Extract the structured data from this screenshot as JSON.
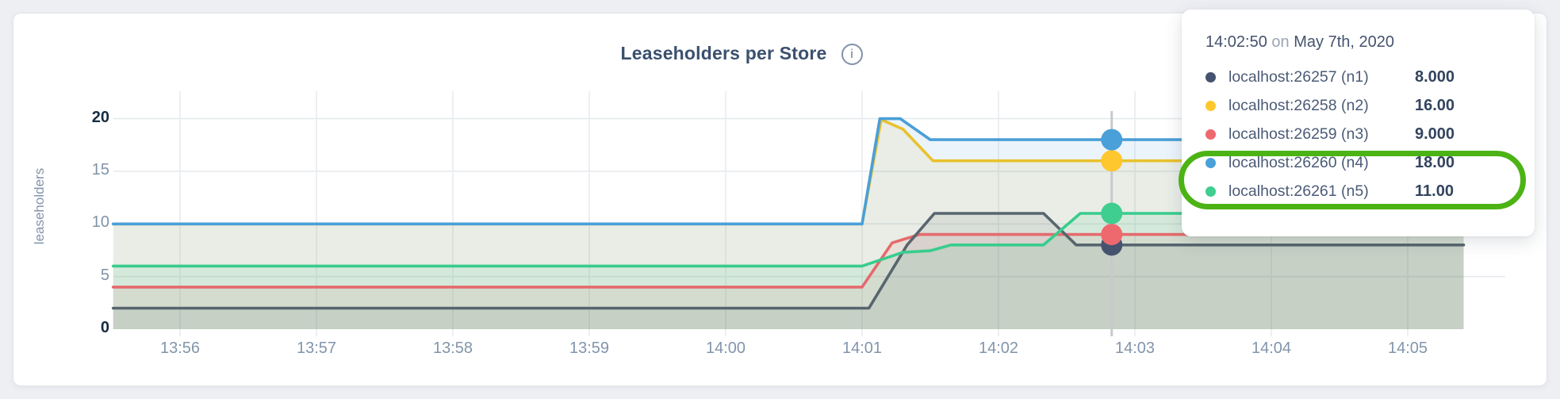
{
  "chart": {
    "title": "Leaseholders per Store",
    "info_glyph": "i",
    "y_axis_label": "leaseholders"
  },
  "tooltip": {
    "time": "14:02:50",
    "on_word": "on",
    "date": "May 7th, 2020",
    "rows": [
      {
        "label": "localhost:26257 (n1)",
        "value": "8.000",
        "color": "#45536e"
      },
      {
        "label": "localhost:26258 (n2)",
        "value": "16.00",
        "color": "#fec72e"
      },
      {
        "label": "localhost:26259 (n3)",
        "value": "9.000",
        "color": "#ed696e"
      },
      {
        "label": "localhost:26260 (n4)",
        "value": "18.00",
        "color": "#4aa0d9"
      },
      {
        "label": "localhost:26261 (n5)",
        "value": "11.00",
        "color": "#3fce8f"
      }
    ],
    "highlighted_rows": [
      3,
      4
    ],
    "highlight_color": "#4cb315"
  },
  "chart_data": {
    "type": "area",
    "title": "Leaseholders per Store",
    "ylabel": "leaseholders",
    "ylim": [
      0,
      20
    ],
    "yticks": [
      0,
      5,
      10,
      15,
      20
    ],
    "ytick_emphasis": [
      0,
      20
    ],
    "xticks": [
      "13:56",
      "13:57",
      "13:58",
      "13:59",
      "14:00",
      "14:01",
      "14:02",
      "14:03",
      "14:04",
      "14:05"
    ],
    "x_minutes_range": [
      -0.49,
      9.41
    ],
    "grid": true,
    "legend_position": "tooltip-top-right",
    "hover": {
      "time_label": "14:02:50",
      "x_minutes": 6.83
    },
    "series": [
      {
        "name": "localhost:26257 (n1)",
        "color": "#57656e",
        "dot_color": "#45536e",
        "value_at_hover": 8,
        "points": [
          [
            -0.49,
            2
          ],
          [
            5.05,
            2
          ],
          [
            5.33,
            8
          ],
          [
            5.53,
            11
          ],
          [
            6.33,
            11
          ],
          [
            6.57,
            8
          ],
          [
            9.41,
            8
          ]
        ]
      },
      {
        "name": "localhost:26258 (n2)",
        "color": "#e9c22d",
        "dot_color": "#fec72e",
        "value_at_hover": 16,
        "points": [
          [
            -0.49,
            10
          ],
          [
            5.0,
            10
          ],
          [
            5.14,
            19.9
          ],
          [
            5.3,
            19
          ],
          [
            5.52,
            16
          ],
          [
            9.41,
            16
          ]
        ]
      },
      {
        "name": "localhost:26259 (n3)",
        "color": "#e56a6d",
        "dot_color": "#ed696e",
        "value_at_hover": 9,
        "points": [
          [
            -0.49,
            4
          ],
          [
            5.0,
            4
          ],
          [
            5.22,
            8.2
          ],
          [
            5.42,
            9
          ],
          [
            9.41,
            9
          ]
        ]
      },
      {
        "name": "localhost:26260 (n4)",
        "color": "#4a9fd7",
        "dot_color": "#4aa0d9",
        "value_at_hover": 18,
        "points": [
          [
            -0.49,
            10
          ],
          [
            5.0,
            10
          ],
          [
            5.13,
            20
          ],
          [
            5.28,
            20
          ],
          [
            5.5,
            18
          ],
          [
            9.41,
            18
          ]
        ]
      },
      {
        "name": "localhost:26261 (n5)",
        "color": "#38cc8d",
        "dot_color": "#3fce8f",
        "value_at_hover": 11,
        "points": [
          [
            -0.49,
            6
          ],
          [
            5.0,
            6
          ],
          [
            5.3,
            7.3
          ],
          [
            5.5,
            7.45
          ],
          [
            5.65,
            8
          ],
          [
            6.33,
            8
          ],
          [
            6.6,
            11
          ],
          [
            9.41,
            11
          ]
        ]
      }
    ],
    "area_draw_order": [
      1,
      3,
      2,
      0,
      4
    ],
    "dot_draw_order": [
      0,
      2,
      4,
      1,
      3
    ]
  }
}
